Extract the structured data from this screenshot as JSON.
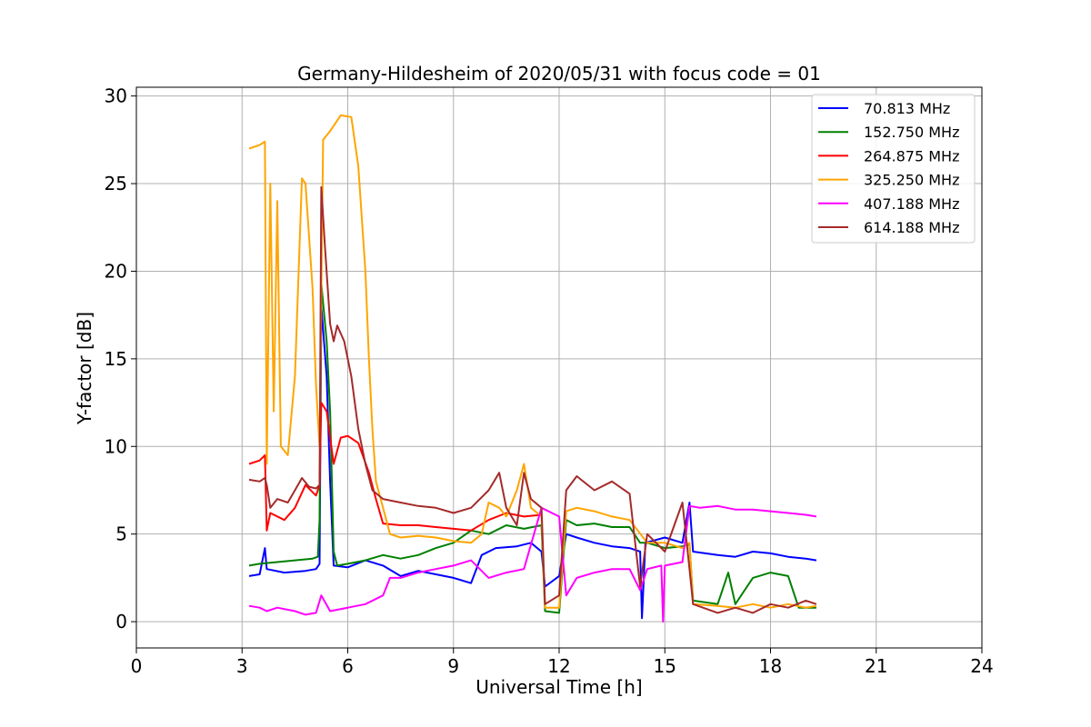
{
  "chart_data": {
    "type": "line",
    "title": "Germany-Hildesheim of 2020/05/31 with focus code = 01",
    "xlabel": "Universal Time [h]",
    "ylabel": "Y-factor [dB]",
    "xlim": [
      0,
      24
    ],
    "ylim": [
      -1.5,
      30.5
    ],
    "xticks": [
      0,
      3,
      6,
      9,
      12,
      15,
      18,
      21,
      24
    ],
    "yticks": [
      0,
      5,
      10,
      15,
      20,
      25,
      30
    ],
    "grid": true,
    "legend_position": "top-right",
    "series": [
      {
        "name": " 70.813 MHz",
        "color": "#0000ff",
        "points": [
          [
            3.2,
            2.6
          ],
          [
            3.5,
            2.7
          ],
          [
            3.65,
            4.2
          ],
          [
            3.7,
            3.0
          ],
          [
            4.2,
            2.8
          ],
          [
            4.8,
            2.9
          ],
          [
            5.1,
            3.0
          ],
          [
            5.2,
            3.3
          ],
          [
            5.25,
            18.0
          ],
          [
            5.4,
            14.0
          ],
          [
            5.5,
            8.0
          ],
          [
            5.6,
            3.2
          ],
          [
            6.0,
            3.1
          ],
          [
            6.5,
            3.5
          ],
          [
            7.0,
            3.2
          ],
          [
            7.5,
            2.6
          ],
          [
            8.0,
            2.9
          ],
          [
            8.5,
            2.7
          ],
          [
            9.0,
            2.5
          ],
          [
            9.5,
            2.2
          ],
          [
            9.8,
            3.8
          ],
          [
            10.2,
            4.2
          ],
          [
            10.8,
            4.3
          ],
          [
            11.2,
            4.5
          ],
          [
            11.5,
            4.0
          ],
          [
            11.6,
            2.0
          ],
          [
            12.0,
            2.6
          ],
          [
            12.2,
            5.0
          ],
          [
            12.5,
            4.8
          ],
          [
            13.0,
            4.5
          ],
          [
            13.5,
            4.3
          ],
          [
            14.0,
            4.2
          ],
          [
            14.3,
            4.0
          ],
          [
            14.35,
            0.2
          ],
          [
            14.45,
            4.5
          ],
          [
            15.0,
            4.8
          ],
          [
            15.5,
            4.5
          ],
          [
            15.7,
            6.8
          ],
          [
            15.8,
            4.0
          ],
          [
            16.5,
            3.8
          ],
          [
            17.0,
            3.7
          ],
          [
            17.5,
            4.0
          ],
          [
            18.0,
            3.9
          ],
          [
            18.5,
            3.7
          ],
          [
            19.0,
            3.6
          ],
          [
            19.3,
            3.5
          ]
        ]
      },
      {
        "name": "152.750 MHz",
        "color": "#008000",
        "points": [
          [
            3.2,
            3.2
          ],
          [
            3.5,
            3.3
          ],
          [
            4.0,
            3.4
          ],
          [
            4.5,
            3.5
          ],
          [
            5.0,
            3.6
          ],
          [
            5.15,
            3.7
          ],
          [
            5.2,
            5.8
          ],
          [
            5.25,
            19.3
          ],
          [
            5.4,
            16.0
          ],
          [
            5.5,
            12.0
          ],
          [
            5.6,
            4.0
          ],
          [
            5.7,
            3.2
          ],
          [
            6.0,
            3.3
          ],
          [
            6.5,
            3.5
          ],
          [
            7.0,
            3.8
          ],
          [
            7.5,
            3.6
          ],
          [
            8.0,
            3.8
          ],
          [
            8.5,
            4.2
          ],
          [
            9.0,
            4.5
          ],
          [
            9.5,
            5.2
          ],
          [
            10.0,
            5.0
          ],
          [
            10.5,
            5.5
          ],
          [
            11.0,
            5.3
          ],
          [
            11.5,
            5.5
          ],
          [
            11.6,
            0.6
          ],
          [
            12.0,
            0.5
          ],
          [
            12.2,
            5.8
          ],
          [
            12.5,
            5.5
          ],
          [
            13.0,
            5.6
          ],
          [
            13.5,
            5.4
          ],
          [
            14.0,
            5.4
          ],
          [
            14.3,
            4.5
          ],
          [
            14.5,
            4.5
          ],
          [
            15.0,
            4.2
          ],
          [
            15.5,
            4.3
          ],
          [
            15.7,
            4.4
          ],
          [
            15.8,
            1.2
          ],
          [
            16.5,
            1.0
          ],
          [
            16.8,
            2.8
          ],
          [
            17.0,
            1.0
          ],
          [
            17.5,
            2.5
          ],
          [
            18.0,
            2.8
          ],
          [
            18.5,
            2.6
          ],
          [
            18.8,
            0.8
          ],
          [
            19.3,
            0.8
          ]
        ]
      },
      {
        "name": "264.875 MHz",
        "color": "#ff0000",
        "points": [
          [
            3.2,
            9.0
          ],
          [
            3.5,
            9.2
          ],
          [
            3.65,
            9.5
          ],
          [
            3.7,
            5.2
          ],
          [
            3.8,
            6.2
          ],
          [
            4.2,
            5.8
          ],
          [
            4.5,
            6.5
          ],
          [
            4.8,
            7.8
          ],
          [
            5.1,
            7.2
          ],
          [
            5.2,
            7.8
          ],
          [
            5.25,
            12.5
          ],
          [
            5.4,
            12.0
          ],
          [
            5.6,
            9.0
          ],
          [
            5.8,
            10.5
          ],
          [
            6.0,
            10.6
          ],
          [
            6.3,
            10.2
          ],
          [
            6.6,
            8.5
          ],
          [
            6.8,
            7.0
          ],
          [
            7.0,
            5.6
          ],
          [
            7.5,
            5.5
          ],
          [
            8.0,
            5.5
          ],
          [
            8.5,
            5.4
          ],
          [
            9.0,
            5.3
          ],
          [
            9.5,
            5.2
          ],
          [
            10.0,
            5.8
          ],
          [
            10.5,
            6.2
          ],
          [
            11.0,
            6.0
          ],
          [
            11.5,
            6.1
          ]
        ]
      },
      {
        "name": "325.250 MHz",
        "color": "#ffa500",
        "points": [
          [
            3.2,
            27.0
          ],
          [
            3.5,
            27.2
          ],
          [
            3.65,
            27.4
          ],
          [
            3.7,
            9.0
          ],
          [
            3.8,
            25.0
          ],
          [
            3.9,
            12.0
          ],
          [
            4.0,
            24.0
          ],
          [
            4.1,
            10.0
          ],
          [
            4.3,
            9.5
          ],
          [
            4.5,
            14.0
          ],
          [
            4.7,
            25.3
          ],
          [
            4.8,
            25.0
          ],
          [
            5.0,
            19.0
          ],
          [
            5.1,
            13.5
          ],
          [
            5.2,
            10.0
          ],
          [
            5.3,
            27.5
          ],
          [
            5.5,
            28.0
          ],
          [
            5.8,
            28.9
          ],
          [
            6.1,
            28.8
          ],
          [
            6.3,
            26.0
          ],
          [
            6.5,
            20.0
          ],
          [
            6.6,
            15.0
          ],
          [
            6.7,
            11.0
          ],
          [
            6.8,
            8.0
          ],
          [
            7.0,
            6.5
          ],
          [
            7.2,
            5.0
          ],
          [
            7.5,
            4.8
          ],
          [
            8.0,
            4.9
          ],
          [
            8.5,
            4.8
          ],
          [
            9.0,
            4.6
          ],
          [
            9.5,
            4.5
          ],
          [
            9.8,
            5.0
          ],
          [
            10.0,
            6.8
          ],
          [
            10.3,
            6.5
          ],
          [
            10.5,
            6.0
          ],
          [
            10.8,
            7.5
          ],
          [
            11.0,
            9.0
          ],
          [
            11.2,
            6.5
          ],
          [
            11.5,
            6.0
          ],
          [
            11.6,
            0.8
          ],
          [
            12.0,
            0.8
          ],
          [
            12.2,
            6.3
          ],
          [
            12.5,
            6.5
          ],
          [
            13.0,
            6.3
          ],
          [
            13.5,
            6.0
          ],
          [
            14.0,
            5.8
          ],
          [
            14.5,
            4.5
          ],
          [
            15.0,
            4.5
          ],
          [
            15.5,
            4.2
          ],
          [
            15.7,
            4.5
          ],
          [
            15.8,
            1.0
          ],
          [
            16.5,
            0.9
          ],
          [
            17.0,
            0.8
          ],
          [
            17.5,
            1.0
          ],
          [
            18.0,
            0.8
          ],
          [
            18.5,
            1.0
          ],
          [
            19.0,
            0.8
          ],
          [
            19.3,
            0.9
          ]
        ]
      },
      {
        "name": "407.188 MHz",
        "color": "#ff00ff",
        "points": [
          [
            3.2,
            0.9
          ],
          [
            3.5,
            0.8
          ],
          [
            3.7,
            0.6
          ],
          [
            4.0,
            0.8
          ],
          [
            4.5,
            0.6
          ],
          [
            4.8,
            0.4
          ],
          [
            5.1,
            0.5
          ],
          [
            5.25,
            1.5
          ],
          [
            5.5,
            0.6
          ],
          [
            6.0,
            0.8
          ],
          [
            6.5,
            1.0
          ],
          [
            7.0,
            1.5
          ],
          [
            7.2,
            2.5
          ],
          [
            7.5,
            2.5
          ],
          [
            8.0,
            2.8
          ],
          [
            8.5,
            3.0
          ],
          [
            9.0,
            3.2
          ],
          [
            9.5,
            3.5
          ],
          [
            10.0,
            2.5
          ],
          [
            10.5,
            2.8
          ],
          [
            11.0,
            3.0
          ],
          [
            11.5,
            6.5
          ],
          [
            12.0,
            6.0
          ],
          [
            12.2,
            1.5
          ],
          [
            12.5,
            2.5
          ],
          [
            13.0,
            2.8
          ],
          [
            13.5,
            3.0
          ],
          [
            14.0,
            3.0
          ],
          [
            14.3,
            1.8
          ],
          [
            14.5,
            3.0
          ],
          [
            14.9,
            3.2
          ],
          [
            14.95,
            0.0
          ],
          [
            15.0,
            3.2
          ],
          [
            15.5,
            3.4
          ],
          [
            15.7,
            6.6
          ],
          [
            16.0,
            6.5
          ],
          [
            16.5,
            6.6
          ],
          [
            17.0,
            6.4
          ],
          [
            17.5,
            6.4
          ],
          [
            18.0,
            6.3
          ],
          [
            18.5,
            6.2
          ],
          [
            19.0,
            6.1
          ],
          [
            19.3,
            6.0
          ]
        ]
      },
      {
        "name": "614.188 MHz",
        "color": "#a52a2a",
        "points": [
          [
            3.2,
            8.1
          ],
          [
            3.5,
            8.0
          ],
          [
            3.65,
            8.2
          ],
          [
            3.7,
            7.8
          ],
          [
            3.8,
            6.5
          ],
          [
            4.0,
            7.0
          ],
          [
            4.3,
            6.8
          ],
          [
            4.5,
            7.5
          ],
          [
            4.7,
            8.2
          ],
          [
            4.9,
            7.7
          ],
          [
            5.1,
            7.6
          ],
          [
            5.2,
            7.8
          ],
          [
            5.25,
            24.8
          ],
          [
            5.35,
            21.5
          ],
          [
            5.5,
            17.0
          ],
          [
            5.6,
            16.0
          ],
          [
            5.7,
            16.9
          ],
          [
            5.9,
            16.0
          ],
          [
            6.1,
            14.0
          ],
          [
            6.3,
            11.0
          ],
          [
            6.5,
            9.0
          ],
          [
            6.7,
            7.5
          ],
          [
            7.0,
            7.0
          ],
          [
            7.5,
            6.8
          ],
          [
            8.0,
            6.6
          ],
          [
            8.5,
            6.5
          ],
          [
            9.0,
            6.2
          ],
          [
            9.5,
            6.5
          ],
          [
            10.0,
            7.5
          ],
          [
            10.3,
            8.5
          ],
          [
            10.5,
            6.5
          ],
          [
            10.8,
            5.5
          ],
          [
            11.0,
            8.5
          ],
          [
            11.2,
            7.0
          ],
          [
            11.5,
            6.5
          ],
          [
            11.6,
            1.0
          ],
          [
            12.0,
            1.5
          ],
          [
            12.2,
            7.5
          ],
          [
            12.5,
            8.3
          ],
          [
            13.0,
            7.5
          ],
          [
            13.5,
            8.0
          ],
          [
            14.0,
            7.3
          ],
          [
            14.3,
            2.0
          ],
          [
            14.5,
            5.0
          ],
          [
            15.0,
            4.0
          ],
          [
            15.5,
            6.8
          ],
          [
            15.7,
            3.0
          ],
          [
            15.8,
            1.0
          ],
          [
            16.5,
            0.5
          ],
          [
            17.0,
            0.8
          ],
          [
            17.5,
            0.5
          ],
          [
            18.0,
            1.0
          ],
          [
            18.5,
            0.8
          ],
          [
            19.0,
            1.2
          ],
          [
            19.3,
            1.0
          ]
        ]
      }
    ]
  }
}
